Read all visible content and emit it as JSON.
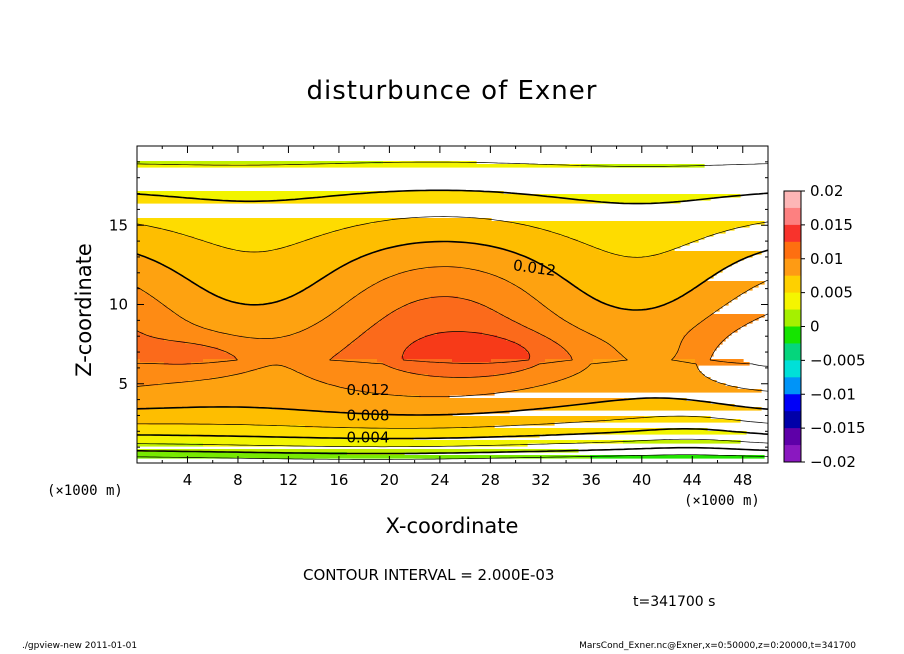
{
  "chart_data": {
    "type": "contour",
    "title": "disturbunce of Exner",
    "xlabel": "X-coordinate",
    "ylabel": "Z-coordinate",
    "x_unit_label": "(×1000 m)",
    "xlim": [
      0,
      50
    ],
    "ylim": [
      0,
      20
    ],
    "x_ticks": [
      4,
      8,
      12,
      16,
      20,
      24,
      28,
      32,
      36,
      40,
      44,
      48
    ],
    "y_ticks": [
      5,
      10,
      15
    ],
    "contour_interval_text": "CONTOUR INTERVAL = 2.000E-03",
    "time_text": "t=341700 s",
    "contour_labels": [
      {
        "text": "0.012",
        "x": 31.5,
        "z": 12.3
      },
      {
        "text": "0.012",
        "x": 18.3,
        "z": 4.6
      },
      {
        "text": "0.008",
        "x": 18.3,
        "z": 3.0
      },
      {
        "text": "0.004",
        "x": 18.3,
        "z": 1.6
      }
    ],
    "colorbar": {
      "ticks": [
        "0.02",
        "0.015",
        "0.01",
        "0.005",
        "0",
        "−0.005",
        "−0.01",
        "−0.015",
        "−0.02"
      ],
      "colors": [
        "#fdb6b6",
        "#fd8080",
        "#f8332c",
        "#fe6f10",
        "#fe9b14",
        "#fed000",
        "#f5f500",
        "#a5f000",
        "#15e400",
        "#05d57c",
        "#00e0d8",
        "#0094f8",
        "#0000f8",
        "#0000a8",
        "#5e00a8",
        "#8a18c0"
      ]
    },
    "fields": {
      "band_colors": [
        "#22e400",
        "#78ea00",
        "#c2f000",
        "#f2f400",
        "#fedc00",
        "#febe00",
        "#fea210",
        "#fe8b14",
        "#fb6a1b",
        "#f73a18"
      ],
      "thresholds": [
        0.002,
        0.004,
        0.006,
        0.008,
        0.01,
        0.012,
        0.014,
        0.016,
        0.018,
        0.02
      ],
      "contour_levels": [
        0.002,
        0.004,
        0.006,
        0.008,
        0.01,
        0.012,
        0.014,
        0.016,
        0.018
      ]
    }
  },
  "footer": {
    "left": "./gpview-new   2011-01-01",
    "right": "MarsCond_Exner.nc@Exner,x=0:50000,z=0:20000,t=341700"
  }
}
